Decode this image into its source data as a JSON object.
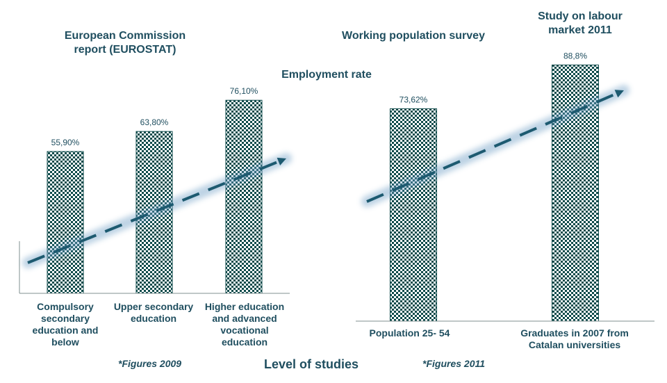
{
  "colors": {
    "accent": "#1f4e5f",
    "bar_pattern": "#0d4a4a",
    "trend": "#1d5a70"
  },
  "titles": {
    "left_report": "European Commission report (EUROSTAT)",
    "middle_survey": "Working population survey",
    "right_study": "Study on labour market 2011",
    "employment_rate": "Employment rate"
  },
  "notes": {
    "left": "*Figures 2009",
    "right": "*Figures 2011"
  },
  "x_axis_title": "Level of studies",
  "chart_data": [
    {
      "type": "bar",
      "categories": [
        "Compulsory secondary education and below",
        "Upper secondary education",
        "Higher education and advanced vocational education"
      ],
      "values": [
        55.9,
        63.8,
        76.1
      ],
      "value_labels": [
        "55,90%",
        "63,80%",
        "76,10%"
      ],
      "ylim": [
        0,
        100
      ]
    },
    {
      "type": "bar",
      "categories": [
        "Population 25- 54",
        "Graduates in 2007 from Catalan universities"
      ],
      "values": [
        73.62,
        88.8
      ],
      "value_labels": [
        "73,62%",
        "88,8%"
      ],
      "ylim": [
        0,
        100
      ]
    }
  ]
}
